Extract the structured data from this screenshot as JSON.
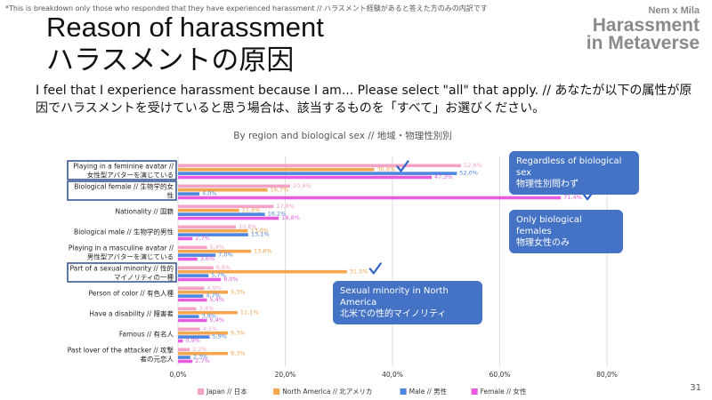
{
  "header": {
    "note": "*This is breakdown only those who responded that they have experienced harassment // ハラスメント経験があると答えた方のみの内訳です",
    "title_en": "Reason of harassment",
    "title_ja": "ハラスメントの原因",
    "brand_line1": "Nem x Mila",
    "brand_line2": "Harassment",
    "brand_line3": "in Metaverse",
    "question": "I feel that I experience harassment because I am... Please select \"all\" that apply. // あなたが以下の属性が原因でハラスメントを受けていると思う場合は、該当するものを「すべて」お選びください。"
  },
  "page_number": "31",
  "callouts": [
    {
      "line1": "Regardless of biological sex",
      "line2": "物理性別問わず"
    },
    {
      "line1": "Only biological females",
      "line2": "物理女性のみ"
    },
    {
      "line1": "Sexual minority in North America",
      "line2": "北米での性的マイノリティ"
    }
  ],
  "colors": {
    "japan": "#f4a3c6",
    "north_america": "#f5a54c",
    "male": "#4f86e0",
    "female": "#e85be0",
    "highlight_box": "#2f4f8f",
    "callout": "#4472c4",
    "checkmark": "#2e64c8"
  },
  "chart_data": {
    "type": "bar",
    "orientation": "horizontal",
    "title": "By region and biological sex // 地域・物理性別別",
    "xlim": [
      0,
      80
    ],
    "xticks": [
      "0,0%",
      "20,0%",
      "40,0%",
      "60,0%",
      "80,0%"
    ],
    "legend_placement": "bottom",
    "grid": true,
    "categories": [
      [
        "Playing in a feminine avatar //",
        "女性型アバターを演じている"
      ],
      [
        "Biological female // 生物学的女",
        "性"
      ],
      [
        "Nationality // 国籍"
      ],
      [
        "Biological male // 生物学的男性"
      ],
      [
        "Playing in a masculine avatar //",
        "男性型アバターを演じている"
      ],
      [
        "Part of a sexual minority // 性的",
        "マイノリティの一種"
      ],
      [
        "Person of color // 有色人種"
      ],
      [
        "Have a disability // 障害者"
      ],
      [
        "Famous // 有名人"
      ],
      [
        "Past lover of the attacker // 攻撃",
        "者の元恋人"
      ]
    ],
    "highlighted_categories": [
      0,
      1,
      5
    ],
    "series": [
      {
        "name": "Japan // 日本",
        "key": "japan",
        "values": [
          52.8,
          20.9,
          17.8,
          10.8,
          5.4,
          6.6,
          4.9,
          3.4,
          4.1,
          2.2
        ],
        "labels": [
          "52,8%",
          "20,9%",
          "17,8%",
          "10,8%",
          "5,4%",
          "6,6%",
          "4,9%",
          "3,4%",
          "4,1%",
          "2,2%"
        ]
      },
      {
        "name": "North America // 北アメリカ",
        "key": "north_america",
        "values": [
          36.6,
          16.7,
          11.4,
          13.0,
          13.6,
          31.5,
          9.3,
          11.1,
          9.3,
          9.3
        ],
        "labels": [
          "36,6%",
          "16,7%",
          "11,4%",
          "13,0%",
          "13,6%",
          "31,5%",
          "9,3%",
          "11,1%",
          "9,3%",
          "9,3%"
        ]
      },
      {
        "name": "Male // 男性",
        "key": "male",
        "values": [
          52.0,
          4.0,
          16.2,
          13.1,
          7.0,
          5.7,
          4.7,
          3.9,
          5.9,
          2.3
        ],
        "labels": [
          "52,0%",
          "4,0%",
          "16,2%",
          "13,1%",
          "7,0%",
          "5,7%",
          "4,7%",
          "3,9%",
          "5,9%",
          "2,3%"
        ]
      },
      {
        "name": "Female // 女性",
        "key": "female",
        "values": [
          47.3,
          71.4,
          18.8,
          2.7,
          3.6,
          8.0,
          5.4,
          5.4,
          0.9,
          2.7
        ],
        "labels": [
          "47,3%",
          "71,4%",
          "18,8%",
          "2,7%",
          "3,6%",
          "8,0%",
          "5,4%",
          "5,4%",
          "0,9%",
          "2,7%"
        ]
      }
    ]
  }
}
